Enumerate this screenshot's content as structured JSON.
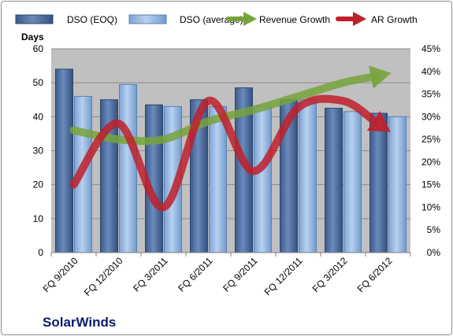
{
  "chart_data": {
    "type": "bar",
    "categories": [
      "FQ 9/2010",
      "FQ 12/2010",
      "FQ 3/2011",
      "FQ 6/2011",
      "FQ 9/2011",
      "FQ 12/2011",
      "FQ 3/2012",
      "FQ 6/2012"
    ],
    "series": [
      {
        "name": "DSO (EOQ)",
        "type": "bar",
        "axis": "left",
        "values": [
          54,
          45,
          43.5,
          45,
          48.5,
          45,
          42.5,
          41
        ],
        "color": "#4f6fa0"
      },
      {
        "name": "DSO (average)",
        "type": "bar",
        "axis": "left",
        "values": [
          46,
          49.5,
          43,
          43,
          43,
          45,
          41.5,
          40
        ],
        "color": "#8fb4e3"
      },
      {
        "name": "Revenue Growth",
        "type": "line-arrow",
        "axis": "right",
        "values": [
          27,
          25,
          25,
          29,
          31.5,
          34.5,
          37.5,
          39.5
        ],
        "color": "#77a33b"
      },
      {
        "name": "AR Growth",
        "type": "line-arrow",
        "axis": "right",
        "values": [
          15,
          28.5,
          10,
          33.5,
          18,
          32,
          33.5,
          27
        ],
        "color": "#c0202a"
      }
    ],
    "ylabel": "Days",
    "ylim": [
      0,
      60
    ],
    "yticks": [
      0,
      10,
      20,
      30,
      40,
      50,
      60
    ],
    "y2lim": [
      0,
      45
    ],
    "y2ticks": [
      "0%",
      "5%",
      "10%",
      "15%",
      "20%",
      "25%",
      "30%",
      "35%",
      "40%",
      "45%"
    ],
    "grid": true,
    "legend_position": "top",
    "plot_background": "#c0c0c0",
    "annotation": "SolarWinds"
  }
}
